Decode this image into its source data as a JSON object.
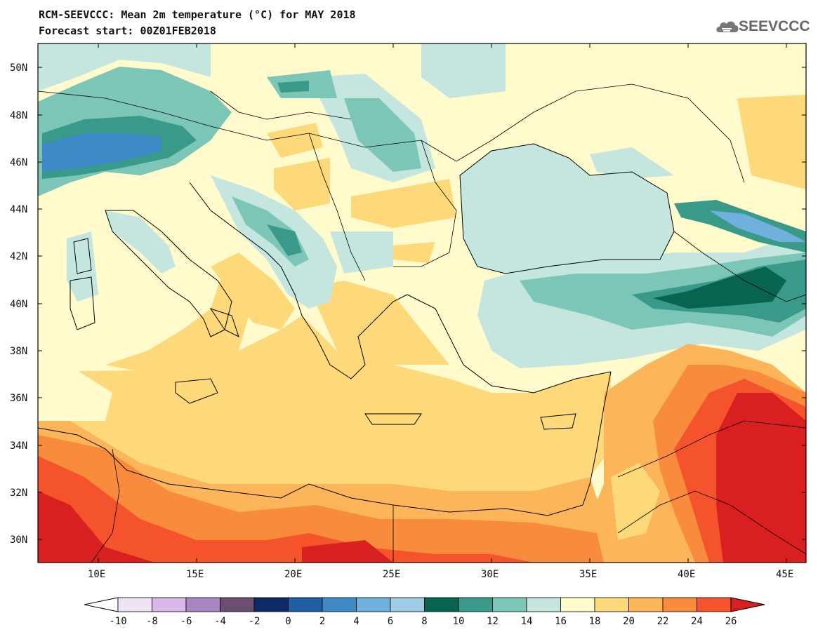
{
  "header": {
    "title": "RCM-SEEVCCC: Mean 2m temperature (°C) for MAY 2018",
    "forecast": "Forecast start: 00Z01FEB2018"
  },
  "logo": {
    "text": "SEEVCCC",
    "icon": "cloud-icon"
  },
  "map": {
    "lat_labels": [
      "50N",
      "48N",
      "46N",
      "44N",
      "42N",
      "40N",
      "38N",
      "36N",
      "34N",
      "32N",
      "30N"
    ],
    "lon_labels": [
      "10E",
      "15E",
      "20E",
      "25E",
      "30E",
      "35E",
      "40E",
      "45E"
    ]
  },
  "colorbar": {
    "ticks": [
      "-10",
      "-8",
      "-6",
      "-4",
      "-2",
      "0",
      "2",
      "4",
      "6",
      "8",
      "10",
      "12",
      "14",
      "16",
      "18",
      "20",
      "22",
      "24",
      "26"
    ],
    "colors": [
      "#ffffff",
      "#efe4f6",
      "#d9b7e6",
      "#a985c2",
      "#6b4f73",
      "#0e2a66",
      "#1f5fa3",
      "#3d8ac6",
      "#6fb0dc",
      "#9fcce6",
      "#07644f",
      "#3a9a8a",
      "#7cc6b8",
      "#c4e6df",
      "#fffbcc",
      "#fdd97a",
      "#fcb559",
      "#f98b3d",
      "#f4532c",
      "#d91f1f"
    ],
    "arrows": "both"
  },
  "colors": {
    "background_sea": "#fdd97a",
    "land_base": "#fffbcc",
    "coastline": "#000000"
  }
}
